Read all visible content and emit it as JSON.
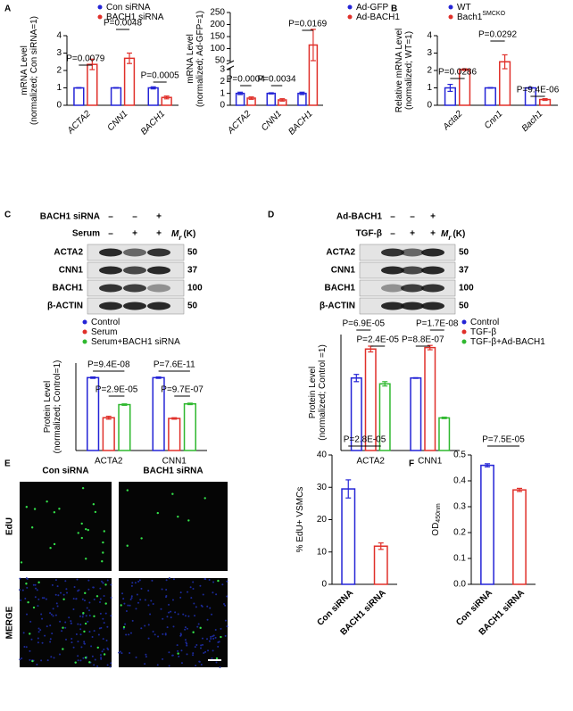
{
  "panels": [
    "A",
    "B",
    "C",
    "D",
    "E",
    "F"
  ],
  "chart_data": [
    {
      "type": "bar",
      "ylabel": [
        "mRNA Level",
        "(normalized; Con siRNA=1)"
      ],
      "categories": [
        "ACTA2",
        "CNN1",
        "BACH1"
      ],
      "series": [
        {
          "name": "Con siRNA",
          "color": "#2424d6",
          "values": [
            1,
            1,
            1
          ],
          "errors": [
            0.02,
            0.02,
            0.06
          ]
        },
        {
          "name": "BACH1 siRNA",
          "color": "#e0302a",
          "values": [
            2.35,
            2.7,
            0.45
          ],
          "errors": [
            0.3,
            0.3,
            0.08
          ]
        }
      ],
      "ylim": [
        0,
        4
      ],
      "yticks": [
        0,
        1,
        2,
        3,
        4
      ],
      "annotations": [
        "P=0.0079",
        "P=0.0048",
        "P=0.0005"
      ]
    },
    {
      "type": "bar",
      "ylabel": [
        "mRNA Level",
        "(normalized; Ad-GFP=1)"
      ],
      "categories": [
        "ACTA2",
        "CNN1",
        "BACH1"
      ],
      "series": [
        {
          "name": "Ad-GFP",
          "color": "#2424d6",
          "values": [
            1,
            1,
            1
          ],
          "errors": [
            0.1,
            0.05,
            0.1
          ]
        },
        {
          "name": "Ad-BACH1",
          "color": "#e0302a",
          "values": [
            0.6,
            0.45,
            115
          ],
          "errors": [
            0.1,
            0.1,
            65
          ]
        }
      ],
      "ylim": [
        0,
        250
      ],
      "ybreak": [
        3,
        50
      ],
      "yticks": [
        0,
        1,
        2,
        3,
        50,
        100,
        150,
        200,
        250
      ],
      "annotations": [
        "P=0.0004",
        "P=0.0034",
        "P=0.0169"
      ]
    },
    {
      "type": "bar",
      "ylabel": [
        "Relative mRNA Level",
        "(normalized; WT=1)"
      ],
      "categories": [
        "Acta2",
        "Cnn1",
        "Bach1"
      ],
      "series": [
        {
          "name": "WT",
          "color": "#2424d6",
          "values": [
            1,
            1,
            1
          ],
          "errors": [
            0.2,
            0.02,
            0.02
          ]
        },
        {
          "name": "Bach1",
          "name_sup": "SMCKO",
          "color": "#e0302a",
          "values": [
            2.05,
            2.5,
            0.33
          ],
          "errors": [
            0.05,
            0.4,
            0.05
          ]
        }
      ],
      "ylim": [
        0,
        4
      ],
      "yticks": [
        0,
        1,
        2,
        3,
        4
      ],
      "annotations": [
        "P=0.0286",
        "P=0.0292",
        "P=9.4E-06"
      ]
    },
    {
      "type": "bar",
      "ylabel": [
        "Protein  Level",
        "(normalized; Control=1)"
      ],
      "categories": [
        "ACTA2",
        "CNN1"
      ],
      "series": [
        {
          "name": "Control",
          "color": "#2424d6",
          "values": [
            1,
            1
          ],
          "errors": [
            0.01,
            0.01
          ]
        },
        {
          "name": "Serum",
          "color": "#e0302a",
          "values": [
            0.45,
            0.44
          ],
          "errors": [
            0.02,
            0.01
          ]
        },
        {
          "name": "Serum+BACH1 siRNA",
          "color": "#2fb82f",
          "values": [
            0.63,
            0.64
          ],
          "errors": [
            0.01,
            0.01
          ]
        }
      ],
      "ylim": [
        0,
        1.2
      ],
      "annotations": [
        "P=9.4E-08",
        "P=2.9E-05",
        "P=7.6E-11",
        "P=9.7E-07"
      ]
    },
    {
      "type": "bar",
      "ylabel": [
        "Protein  Level",
        "(normalized; Control =1)"
      ],
      "categories": [
        "ACTA2",
        "CNN1"
      ],
      "series": [
        {
          "name": "Control",
          "color": "#2424d6",
          "values": [
            1,
            1
          ],
          "errors": [
            0.05,
            0.005
          ]
        },
        {
          "name": "TGF-β",
          "color": "#e0302a",
          "values": [
            1.4,
            1.42
          ],
          "errors": [
            0.04,
            0.03
          ]
        },
        {
          "name": "TGF-β+Ad-BACH1",
          "color": "#2fb82f",
          "values": [
            0.92,
            0.45
          ],
          "errors": [
            0.03,
            0.01
          ]
        }
      ],
      "ylim": [
        0,
        1.6
      ],
      "annotations": [
        "P=6.9E-05",
        "P=2.4E-05",
        "P=1.7E-08",
        "P=8.8E-07"
      ]
    },
    {
      "type": "bar",
      "ylabel": [
        "% EdU+ VSMCs"
      ],
      "categories": [
        "Con siRNA",
        "BACH1 siRNA"
      ],
      "values": [
        29.5,
        11.8
      ],
      "errors": [
        2.8,
        1.0
      ],
      "colors": [
        "#2424d6",
        "#e0302a"
      ],
      "ylim": [
        0,
        40
      ],
      "yticks": [
        0,
        10,
        20,
        30,
        40
      ],
      "annotations": [
        "P=2.8E-05"
      ]
    },
    {
      "type": "bar",
      "ylabel": [
        "OD"
      ],
      "ylabel_sub": "450nm",
      "categories": [
        "Con siRNA",
        "BACH1 siRNA"
      ],
      "values": [
        0.46,
        0.365
      ],
      "errors": [
        0.006,
        0.006
      ],
      "colors": [
        "#2424d6",
        "#e0302a"
      ],
      "ylim": [
        0,
        0.5
      ],
      "yticks": [
        {
          "value": 0,
          "label": "0.0"
        },
        0.1,
        0.2,
        0.3,
        0.4,
        0.5
      ],
      "annotations": [
        "P=7.5E-05"
      ]
    }
  ],
  "blots": [
    {
      "conditions": [
        {
          "label": "BACH1 siRNA",
          "signs": [
            "–",
            "–",
            "+"
          ]
        },
        {
          "label": "Serum",
          "signs": [
            "–",
            "+",
            "+"
          ]
        }
      ],
      "mr": {
        "main": "M",
        "sub": "r",
        "unit": "(K)"
      },
      "bands": [
        {
          "name": "ACTA2",
          "mw": "50"
        },
        {
          "name": "CNN1",
          "mw": "37"
        },
        {
          "name": "BACH1",
          "mw": "100"
        },
        {
          "name": "β-ACTIN",
          "mw": "50"
        }
      ]
    },
    {
      "conditions": [
        {
          "label": "Ad-BACH1",
          "signs": [
            "–",
            "–",
            "+"
          ]
        },
        {
          "label": "TGF-β",
          "signs": [
            "–",
            "+",
            "+"
          ]
        }
      ],
      "mr": {
        "main": "M",
        "sub": "r",
        "unit": "(K)"
      },
      "bands": [
        {
          "name": "ACTA2",
          "mw": "50"
        },
        {
          "name": "CNN1",
          "mw": "37"
        },
        {
          "name": "BACH1",
          "mw": "100"
        },
        {
          "name": "β-ACTIN",
          "mw": "50"
        }
      ]
    }
  ],
  "images": {
    "columns": [
      "Con siRNA",
      "BACH1 siRNA"
    ],
    "rows": [
      "EdU",
      "MERGE"
    ]
  }
}
